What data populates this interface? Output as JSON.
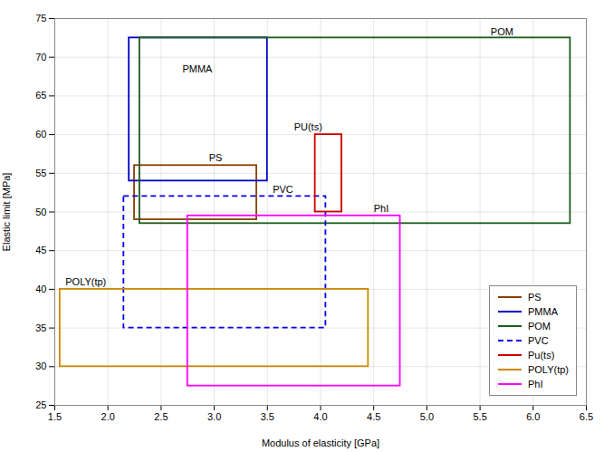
{
  "chart_data": {
    "type": "rectangle",
    "xlabel": "Modulus of elasticity [GPa]",
    "ylabel": "Elastic limit [MPa]",
    "xlim": [
      1.5,
      6.5
    ],
    "ylim": [
      25,
      75
    ],
    "xticks": [
      1.5,
      {
        "value": 2.0,
        "label": "2.0"
      },
      2.5,
      {
        "value": 3.0,
        "label": "3.0"
      },
      3.5,
      {
        "value": 4.0,
        "label": "4.0"
      },
      4.5,
      {
        "value": 5.0,
        "label": "5.0"
      },
      5.5,
      {
        "value": 6.0,
        "label": "6.0"
      },
      6.5
    ],
    "yticks": [
      25,
      30,
      35,
      40,
      45,
      50,
      55,
      60,
      65,
      70,
      75
    ],
    "grid": true,
    "legend": "lower right",
    "series": [
      {
        "name": "PS",
        "color": "#8B4000",
        "line_style": "solid",
        "x0": 2.25,
        "y0": 49.0,
        "x1": 3.4,
        "y1": 56.0,
        "label": "PS",
        "label_x": 2.95,
        "label_y": 56.5
      },
      {
        "name": "PMMA",
        "color": "#0000CC",
        "line_style": "solid",
        "x0": 2.2,
        "y0": 54.0,
        "x1": 3.5,
        "y1": 72.5,
        "label": "PMMA",
        "label_x": 2.7,
        "label_y": 68.0
      },
      {
        "name": "POM",
        "color": "#1A5C1A",
        "line_style": "solid",
        "x0": 2.3,
        "y0": 48.5,
        "x1": 6.35,
        "y1": 72.5,
        "label": "POM",
        "label_x": 5.6,
        "label_y": 72.8
      },
      {
        "name": "PVC",
        "color": "#0000EE",
        "line_style": "dashed",
        "x0": 2.15,
        "y0": 35.0,
        "x1": 4.05,
        "y1": 52.0,
        "label": "PVC",
        "label_x": 3.55,
        "label_y": 52.5
      },
      {
        "name": "Pu(ts)",
        "color": "#CC0000",
        "line_style": "solid",
        "x0": 3.95,
        "y0": 50.0,
        "x1": 4.2,
        "y1": 60.0,
        "label": "PU(ts)",
        "label_x": 3.75,
        "label_y": 60.5
      },
      {
        "name": "POLY(tp)",
        "color": "#CC8800",
        "line_style": "solid",
        "x0": 1.55,
        "y0": 30.0,
        "x1": 4.45,
        "y1": 40.0,
        "label": "POLY(tp)",
        "label_x": 1.6,
        "label_y": 40.5
      },
      {
        "name": "PhI",
        "color": "#FF00FF",
        "line_style": "solid",
        "x0": 2.75,
        "y0": 27.5,
        "x1": 4.75,
        "y1": 49.5,
        "label": "PhI",
        "label_x": 4.5,
        "label_y": 50.0
      }
    ]
  }
}
